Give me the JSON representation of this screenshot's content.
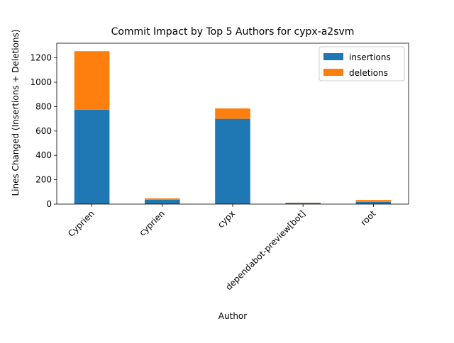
{
  "chart_data": {
    "type": "bar",
    "stacked": true,
    "title": "Commit Impact by Top 5 Authors for cypx-a2svm",
    "xlabel": "Author",
    "ylabel": "Lines Changed (Insertions + Deletions)",
    "categories": [
      "Cyprien",
      "cyprien",
      "cypx",
      "dependabot-preview[bot]",
      "root"
    ],
    "series": [
      {
        "name": "insertions",
        "color": "#1f77b4",
        "values": [
          775,
          35,
          700,
          10,
          18
        ]
      },
      {
        "name": "deletions",
        "color": "#ff7f0e",
        "values": [
          480,
          12,
          85,
          2,
          16
        ]
      }
    ],
    "ylim": [
      0,
      1320
    ],
    "yticks": [
      0,
      200,
      400,
      600,
      800,
      1000,
      1200
    ],
    "legend_position": "top-right",
    "grid": false
  }
}
